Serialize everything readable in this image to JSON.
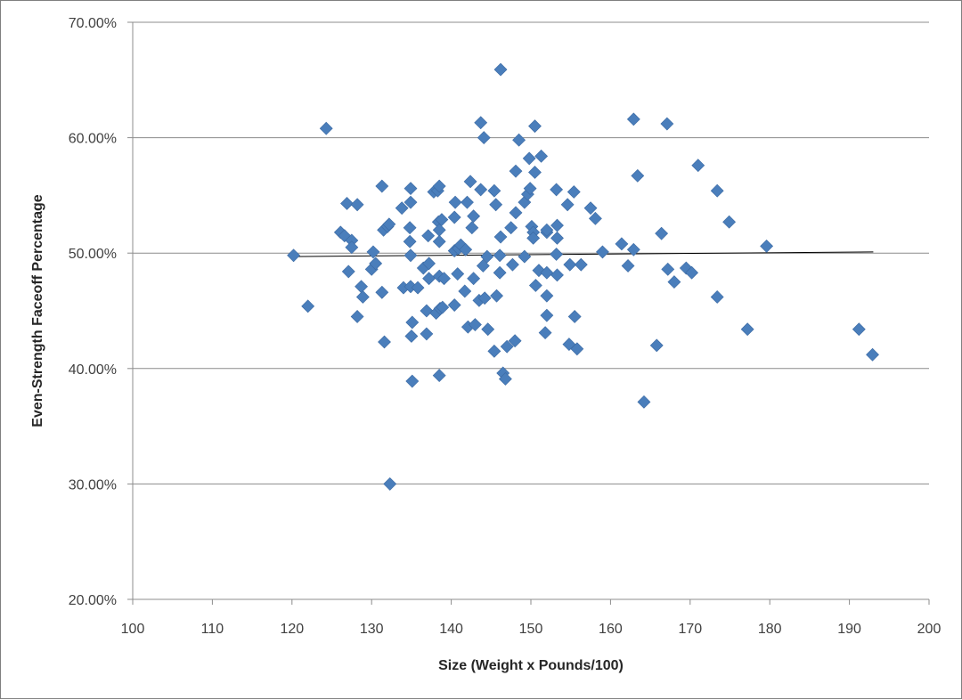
{
  "chart_data": {
    "type": "scatter",
    "title": "",
    "xlabel": "Size (Weight x Pounds/100)",
    "ylabel": "Even-Strength Faceoff Percentage",
    "xlim": [
      100,
      200
    ],
    "ylim": [
      0.2,
      0.7
    ],
    "x_ticks": [
      100,
      110,
      120,
      130,
      140,
      150,
      160,
      170,
      180,
      190,
      200
    ],
    "x_tick_labels": [
      "100",
      "110",
      "120",
      "130",
      "140",
      "150",
      "160",
      "170",
      "180",
      "190",
      "200"
    ],
    "y_ticks": [
      0.2,
      0.3,
      0.4,
      0.5,
      0.6,
      0.7
    ],
    "y_tick_labels": [
      "20.00%",
      "30.00%",
      "40.00%",
      "50.00%",
      "60.00%",
      "70.00%"
    ],
    "grid": {
      "horizontal": true,
      "vertical": false
    },
    "legend": "none",
    "marker_color": "#4a7ebb",
    "trendline_color": "#000000",
    "trendline": {
      "x": [
        120,
        193
      ],
      "y": [
        0.497,
        0.501
      ]
    },
    "series": [
      {
        "points": [
          [
            120.2,
            0.498
          ],
          [
            122.0,
            0.454
          ],
          [
            124.3,
            0.608
          ],
          [
            126.1,
            0.518
          ],
          [
            126.6,
            0.515
          ],
          [
            126.9,
            0.543
          ],
          [
            127.1,
            0.484
          ],
          [
            127.5,
            0.511
          ],
          [
            127.5,
            0.505
          ],
          [
            128.2,
            0.542
          ],
          [
            128.2,
            0.445
          ],
          [
            128.7,
            0.471
          ],
          [
            128.9,
            0.462
          ],
          [
            130.0,
            0.486
          ],
          [
            130.2,
            0.501
          ],
          [
            130.5,
            0.491
          ],
          [
            131.3,
            0.558
          ],
          [
            131.3,
            0.466
          ],
          [
            131.5,
            0.52
          ],
          [
            131.6,
            0.423
          ],
          [
            132.0,
            0.523
          ],
          [
            132.2,
            0.525
          ],
          [
            132.3,
            0.3
          ],
          [
            133.8,
            0.539
          ],
          [
            134.0,
            0.47
          ],
          [
            134.8,
            0.522
          ],
          [
            134.8,
            0.51
          ],
          [
            134.9,
            0.556
          ],
          [
            134.9,
            0.544
          ],
          [
            134.9,
            0.498
          ],
          [
            134.9,
            0.471
          ],
          [
            135.1,
            0.44
          ],
          [
            135.0,
            0.428
          ],
          [
            135.1,
            0.389
          ],
          [
            135.8,
            0.47
          ],
          [
            136.5,
            0.487
          ],
          [
            136.9,
            0.45
          ],
          [
            136.9,
            0.43
          ],
          [
            137.1,
            0.515
          ],
          [
            137.2,
            0.491
          ],
          [
            137.2,
            0.478
          ],
          [
            137.8,
            0.553
          ],
          [
            138.1,
            0.448
          ],
          [
            138.3,
            0.554
          ],
          [
            138.5,
            0.558
          ],
          [
            138.4,
            0.527
          ],
          [
            138.5,
            0.52
          ],
          [
            138.5,
            0.51
          ],
          [
            138.5,
            0.48
          ],
          [
            138.6,
            0.452
          ],
          [
            138.5,
            0.394
          ],
          [
            138.8,
            0.529
          ],
          [
            138.9,
            0.453
          ],
          [
            139.1,
            0.478
          ],
          [
            140.5,
            0.544
          ],
          [
            140.4,
            0.531
          ],
          [
            140.4,
            0.502
          ],
          [
            140.4,
            0.455
          ],
          [
            140.8,
            0.482
          ],
          [
            140.9,
            0.504
          ],
          [
            141.2,
            0.507
          ],
          [
            141.7,
            0.467
          ],
          [
            141.8,
            0.503
          ],
          [
            142.0,
            0.544
          ],
          [
            142.1,
            0.436
          ],
          [
            142.4,
            0.562
          ],
          [
            142.6,
            0.522
          ],
          [
            142.8,
            0.478
          ],
          [
            142.8,
            0.532
          ],
          [
            143.0,
            0.438
          ],
          [
            143.5,
            0.459
          ],
          [
            143.7,
            0.613
          ],
          [
            143.7,
            0.555
          ],
          [
            144.0,
            0.489
          ],
          [
            144.1,
            0.6
          ],
          [
            144.2,
            0.461
          ],
          [
            144.5,
            0.497
          ],
          [
            144.6,
            0.434
          ],
          [
            145.4,
            0.554
          ],
          [
            145.6,
            0.542
          ],
          [
            145.7,
            0.463
          ],
          [
            145.4,
            0.415
          ],
          [
            146.2,
            0.659
          ],
          [
            146.2,
            0.514
          ],
          [
            146.1,
            0.498
          ],
          [
            146.1,
            0.483
          ],
          [
            146.5,
            0.396
          ],
          [
            146.8,
            0.391
          ],
          [
            147.0,
            0.419
          ],
          [
            147.5,
            0.522
          ],
          [
            147.7,
            0.49
          ],
          [
            148.1,
            0.571
          ],
          [
            148.1,
            0.535
          ],
          [
            148.0,
            0.424
          ],
          [
            148.5,
            0.598
          ],
          [
            149.2,
            0.544
          ],
          [
            149.2,
            0.497
          ],
          [
            149.6,
            0.551
          ],
          [
            149.8,
            0.582
          ],
          [
            149.9,
            0.556
          ],
          [
            150.1,
            0.523
          ],
          [
            150.3,
            0.518
          ],
          [
            150.3,
            0.513
          ],
          [
            150.5,
            0.61
          ],
          [
            150.5,
            0.57
          ],
          [
            150.6,
            0.472
          ],
          [
            151.0,
            0.485
          ],
          [
            151.3,
            0.584
          ],
          [
            151.8,
            0.431
          ],
          [
            152.0,
            0.518
          ],
          [
            152.0,
            0.52
          ],
          [
            152.0,
            0.483
          ],
          [
            152.0,
            0.446
          ],
          [
            152.0,
            0.463
          ],
          [
            153.2,
            0.555
          ],
          [
            153.3,
            0.524
          ],
          [
            153.3,
            0.513
          ],
          [
            153.2,
            0.499
          ],
          [
            153.3,
            0.481
          ],
          [
            154.6,
            0.542
          ],
          [
            154.9,
            0.49
          ],
          [
            154.8,
            0.421
          ],
          [
            155.4,
            0.553
          ],
          [
            155.5,
            0.445
          ],
          [
            155.8,
            0.417
          ],
          [
            156.3,
            0.49
          ],
          [
            157.5,
            0.539
          ],
          [
            158.1,
            0.53
          ],
          [
            159.0,
            0.501
          ],
          [
            161.4,
            0.508
          ],
          [
            162.2,
            0.489
          ],
          [
            162.9,
            0.616
          ],
          [
            162.9,
            0.503
          ],
          [
            163.4,
            0.567
          ],
          [
            164.2,
            0.371
          ],
          [
            165.8,
            0.42
          ],
          [
            166.4,
            0.517
          ],
          [
            167.1,
            0.612
          ],
          [
            167.2,
            0.486
          ],
          [
            168.0,
            0.475
          ],
          [
            169.5,
            0.487
          ],
          [
            170.2,
            0.483
          ],
          [
            171.0,
            0.576
          ],
          [
            173.4,
            0.554
          ],
          [
            173.4,
            0.462
          ],
          [
            174.9,
            0.527
          ],
          [
            177.2,
            0.434
          ],
          [
            179.6,
            0.506
          ],
          [
            191.2,
            0.434
          ],
          [
            192.9,
            0.412
          ]
        ]
      }
    ]
  }
}
